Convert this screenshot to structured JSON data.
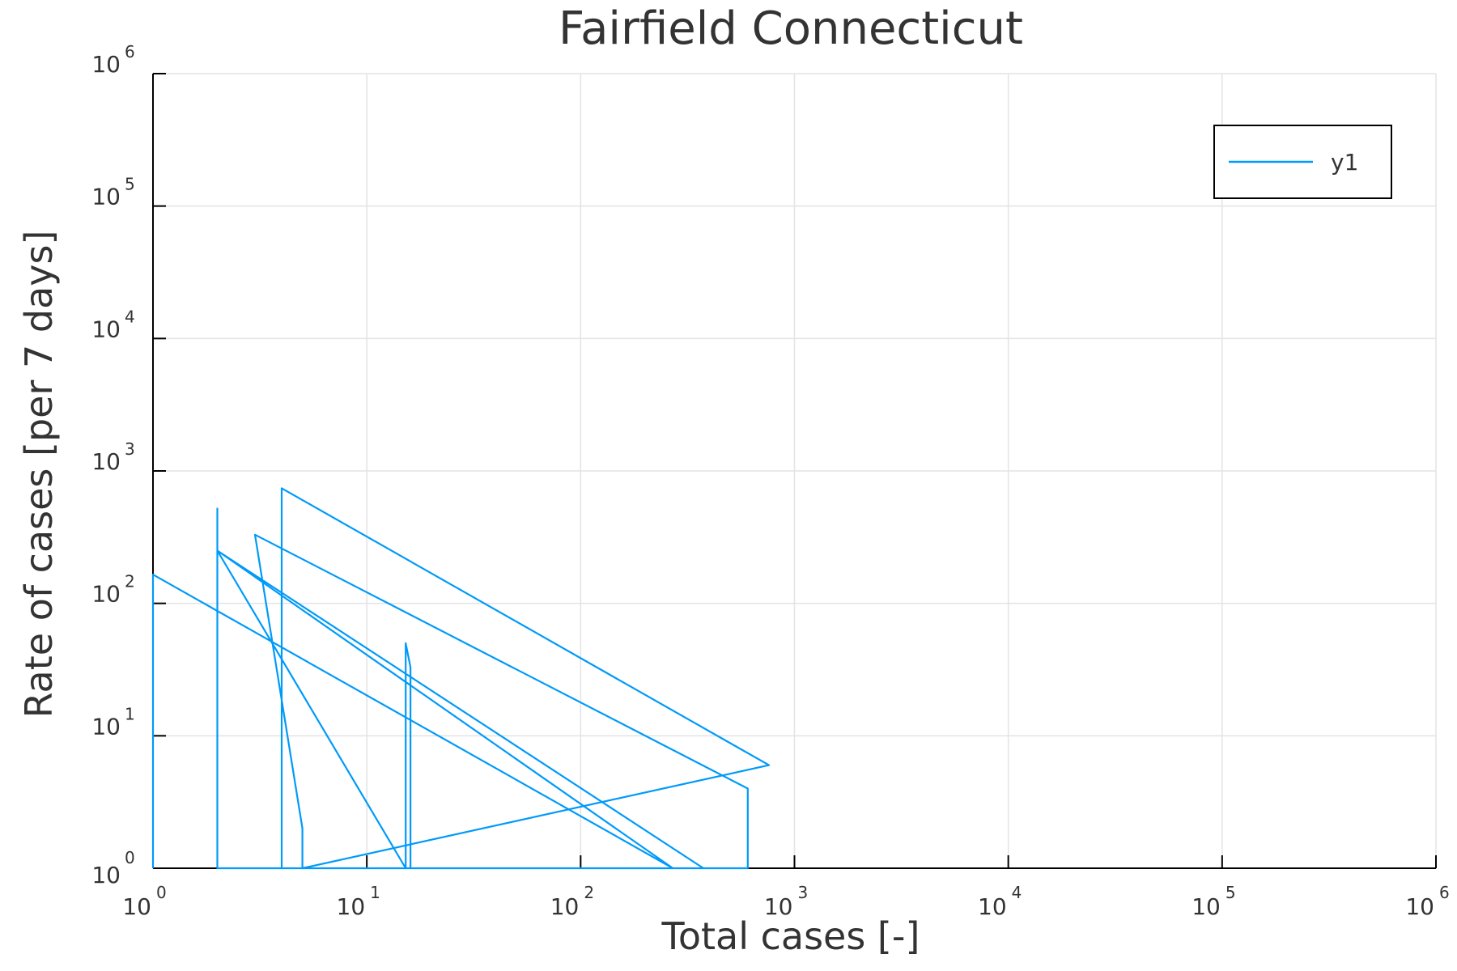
{
  "chart_data": {
    "type": "line",
    "title": "Fairfield Connecticut",
    "xlabel": "Total cases [-]",
    "ylabel": "Rate of cases [per 7 days]",
    "xscale": "log",
    "yscale": "log",
    "xlim": [
      1,
      1000000
    ],
    "ylim": [
      1,
      1000000
    ],
    "xticks": [
      {
        "base": "10",
        "exp": "0",
        "value": 1
      },
      {
        "base": "10",
        "exp": "1",
        "value": 10
      },
      {
        "base": "10",
        "exp": "2",
        "value": 100
      },
      {
        "base": "10",
        "exp": "3",
        "value": 1000
      },
      {
        "base": "10",
        "exp": "4",
        "value": 10000
      },
      {
        "base": "10",
        "exp": "5",
        "value": 100000
      },
      {
        "base": "10",
        "exp": "6",
        "value": 1000000
      }
    ],
    "yticks": [
      {
        "base": "10",
        "exp": "0",
        "value": 1
      },
      {
        "base": "10",
        "exp": "1",
        "value": 10
      },
      {
        "base": "10",
        "exp": "2",
        "value": 100
      },
      {
        "base": "10",
        "exp": "3",
        "value": 1000
      },
      {
        "base": "10",
        "exp": "4",
        "value": 10000
      },
      {
        "base": "10",
        "exp": "5",
        "value": 100000
      },
      {
        "base": "10",
        "exp": "6",
        "value": 1000000
      }
    ],
    "grid": true,
    "legend": {
      "position": "top-right",
      "entries": [
        "y1"
      ]
    },
    "series": [
      {
        "name": "y1",
        "color": "#009af9",
        "points": [
          [
            1,
            1
          ],
          [
            1,
            165
          ],
          [
            270,
            1
          ],
          [
            2,
            1
          ],
          [
            2,
            520
          ],
          [
            2,
            250
          ],
          [
            375,
            1
          ],
          [
            4,
            1
          ],
          [
            4,
            740
          ],
          [
            760,
            6
          ],
          [
            5,
            1
          ],
          [
            5,
            2
          ],
          [
            3,
            330
          ],
          [
            605,
            4
          ],
          [
            605,
            1
          ],
          [
            16,
            1
          ],
          [
            16,
            33
          ],
          [
            15.2,
            50
          ],
          [
            15.2,
            1
          ],
          [
            2,
            250
          ],
          [
            270,
            1
          ]
        ]
      }
    ]
  }
}
